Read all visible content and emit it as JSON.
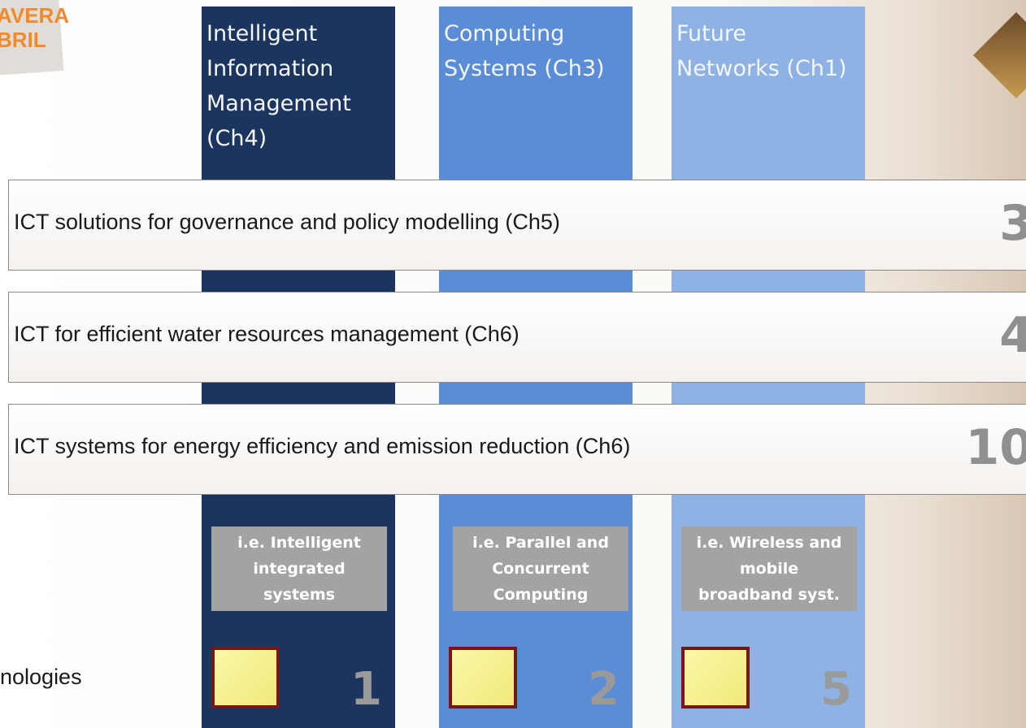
{
  "logo": {
    "lines": [
      "AVERA",
      "BRIL"
    ]
  },
  "columns": [
    {
      "title_lines": [
        "Intelligent",
        "Information",
        "Management",
        "(Ch4)"
      ],
      "example_lines": [
        "i.e. Intelligent",
        "integrated",
        "systems"
      ],
      "number": 1
    },
    {
      "title_lines": [
        "Computing",
        "Systems (Ch3)"
      ],
      "example_lines": [
        "i.e. Parallel and",
        "Concurrent",
        "Computing"
      ],
      "number": 2
    },
    {
      "title_lines": [
        "Future",
        "Networks (Ch1)"
      ],
      "example_lines": [
        "i.e. Wireless and",
        "mobile",
        "broadband syst."
      ],
      "number": 5
    }
  ],
  "rows": [
    {
      "label": "ICT solutions for governance and policy modelling (Ch5)",
      "number": 3
    },
    {
      "label": "ICT for efficient water resources management (Ch6)",
      "number": 4
    },
    {
      "label": "ICT systems for energy efficiency and emission reduction (Ch6)",
      "number": 10
    }
  ],
  "footer_text": "nologies"
}
